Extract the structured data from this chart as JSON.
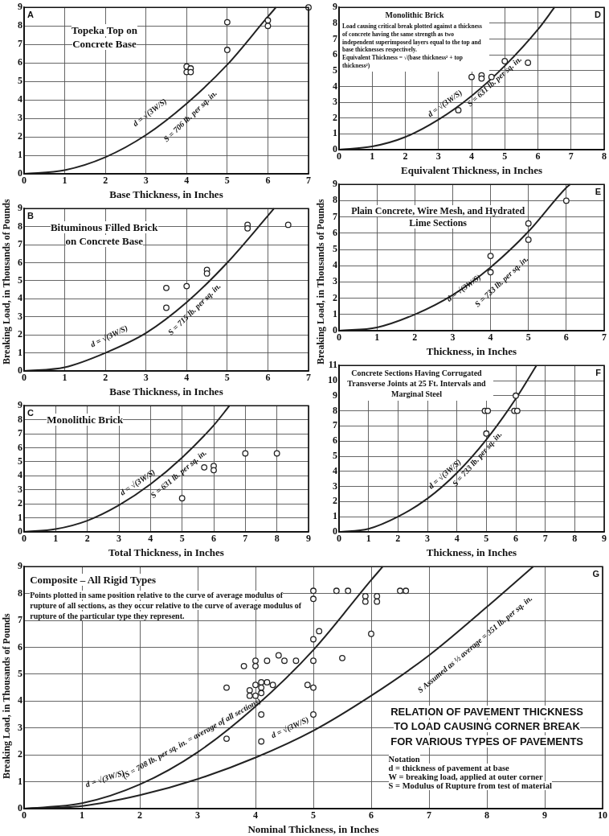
{
  "chart_data": [
    {
      "type": "scatter",
      "title": "Topeka Top on Concrete Base",
      "xlabel": "Base Thickness, in Inches",
      "xlim": [
        0,
        7
      ],
      "ylim": [
        0,
        9
      ],
      "xticks": [
        0,
        1,
        2,
        3,
        4,
        5,
        6,
        7
      ],
      "yticks": [
        0,
        1,
        2,
        3,
        4,
        5,
        6,
        7,
        8,
        9
      ],
      "grid": true,
      "marker": "circle",
      "annotations": [
        "A",
        "d = √(3W/S)",
        "S = 706 lb. per sq. in."
      ],
      "series": [
        {
          "type": "scatter",
          "color": "#222222",
          "x": [
            4,
            4,
            4.1,
            4.1,
            5,
            5,
            6,
            6,
            7
          ],
          "values": [
            5.8,
            5.5,
            5.7,
            5.5,
            8.2,
            6.7,
            8.3,
            8,
            9
          ]
        },
        {
          "type": "line",
          "marker": "none",
          "color": "#222222",
          "x": [
            0,
            1,
            2,
            3,
            4,
            5,
            6,
            6.2
          ],
          "values": [
            0,
            0.2,
            0.9,
            2.1,
            3.8,
            5.9,
            8.5,
            9
          ]
        }
      ]
    },
    {
      "type": "scatter",
      "title": "Bituminous Filled Brick on Concrete Base",
      "xlabel": "Base Thickness, in Inches",
      "ylabel": "Breaking Load, in Thousands of Pounds",
      "xlim": [
        0,
        7
      ],
      "ylim": [
        0,
        9
      ],
      "xticks": [
        0,
        1,
        2,
        3,
        4,
        5,
        6,
        7
      ],
      "yticks": [
        0,
        1,
        2,
        3,
        4,
        5,
        6,
        7,
        8,
        9
      ],
      "grid": true,
      "marker": "circle",
      "annotations": [
        "B",
        "d = √(3W/S)",
        "S = 715 lb. per sq. in."
      ],
      "series": [
        {
          "type": "scatter",
          "color": "#222222",
          "x": [
            3.5,
            3.5,
            4,
            4.5,
            4.5,
            5.5,
            5.5,
            6.5
          ],
          "values": [
            4.6,
            3.5,
            4.7,
            5.6,
            5.4,
            8.1,
            7.9,
            8.1
          ]
        },
        {
          "type": "line",
          "marker": "none",
          "color": "#222222",
          "x": [
            0,
            1,
            2,
            3,
            4,
            5,
            6,
            6.15
          ],
          "values": [
            0,
            0.2,
            1,
            2.1,
            3.8,
            6,
            8.6,
            9
          ]
        }
      ]
    },
    {
      "type": "scatter",
      "title": "Monolithic Brick",
      "xlabel": "Total Thickness, in Inches",
      "xlim": [
        0,
        9
      ],
      "ylim": [
        0,
        9
      ],
      "xticks": [
        0,
        1,
        2,
        3,
        4,
        5,
        6,
        7,
        8,
        9
      ],
      "yticks": [
        0,
        1,
        2,
        3,
        4,
        5,
        6,
        7,
        8,
        9
      ],
      "grid": true,
      "marker": "circle",
      "annotations": [
        "C",
        "d = √(3W/S)",
        "S = 631 lb. per sq. in."
      ],
      "series": [
        {
          "type": "scatter",
          "color": "#222222",
          "x": [
            5,
            5.7,
            6,
            6,
            7,
            8
          ],
          "values": [
            2.4,
            4.6,
            4.7,
            4.4,
            5.6,
            5.6
          ]
        },
        {
          "type": "line",
          "marker": "none",
          "color": "#222222",
          "x": [
            0,
            1,
            2,
            3,
            4,
            5,
            6,
            6.5
          ],
          "values": [
            0,
            0.2,
            0.8,
            1.9,
            3.4,
            5.3,
            7.6,
            9
          ]
        }
      ]
    },
    {
      "type": "scatter",
      "title": "Monolithic Brick",
      "subtitle": "Load causing critical break plotted against a thickness of concrete having the same strength as two independent superimposed layers equal to the top and base thicknesses respectively.",
      "xlabel": "Equivalent Thickness, in Inches",
      "xlim": [
        0,
        8
      ],
      "ylim": [
        0,
        9
      ],
      "xticks": [
        0,
        1,
        2,
        3,
        4,
        5,
        6,
        7,
        8
      ],
      "yticks": [
        0,
        1,
        2,
        3,
        4,
        5,
        6,
        7,
        8,
        9
      ],
      "grid": true,
      "marker": "circle",
      "annotations": [
        "D",
        "Equivalent Thickness = √(base thickness² + top thickness²)",
        "d = √(3W/S)",
        "S = 631 lb. per sq. in."
      ],
      "series": [
        {
          "type": "scatter",
          "color": "#222222",
          "x": [
            3.6,
            4,
            4.3,
            4.3,
            4.6,
            5,
            5.7
          ],
          "values": [
            2.5,
            4.6,
            4.7,
            4.5,
            4.6,
            5.6,
            5.5
          ]
        },
        {
          "type": "line",
          "marker": "none",
          "color": "#222222",
          "x": [
            0,
            1,
            2,
            3,
            4,
            5,
            6,
            6.5
          ],
          "values": [
            0,
            0.2,
            0.8,
            1.9,
            3.4,
            5.3,
            7.6,
            9
          ]
        }
      ]
    },
    {
      "type": "scatter",
      "title": "Plain Concrete, Wire Mesh, and Hydrated Lime Sections",
      "xlabel": "Thickness, in Inches",
      "ylabel": "Breaking Load, in Thousands of Pounds",
      "xlim": [
        0,
        7
      ],
      "ylim": [
        0,
        9
      ],
      "xticks": [
        0,
        1,
        2,
        3,
        4,
        5,
        6,
        7
      ],
      "yticks": [
        0,
        1,
        2,
        3,
        4,
        5,
        6,
        7,
        8,
        9
      ],
      "grid": true,
      "marker": "circle",
      "annotations": [
        "E",
        "d = √(3W/S)",
        "S = 733 lb. per sq. in."
      ],
      "series": [
        {
          "type": "scatter",
          "color": "#222222",
          "x": [
            4,
            4,
            5,
            5,
            6
          ],
          "values": [
            4.6,
            3.6,
            6.6,
            5.6,
            8
          ]
        },
        {
          "type": "line",
          "marker": "none",
          "color": "#222222",
          "x": [
            0,
            1,
            2,
            3,
            4,
            5,
            6,
            6.1
          ],
          "values": [
            0,
            0.2,
            1,
            2.2,
            3.9,
            6.1,
            8.8,
            9
          ]
        }
      ]
    },
    {
      "type": "scatter",
      "title": "Concrete Sections Having Corrugated Transverse Joints at 25 Ft. Intervals and Marginal Steel",
      "xlabel": "Thickness, in Inches",
      "xlim": [
        0,
        9
      ],
      "ylim": [
        0,
        11
      ],
      "xticks": [
        0,
        1,
        2,
        3,
        4,
        5,
        6,
        7,
        8,
        9
      ],
      "yticks": [
        0,
        1,
        2,
        3,
        4,
        5,
        6,
        7,
        8,
        9,
        10,
        11
      ],
      "grid": true,
      "marker": "circle",
      "annotations": [
        "F",
        "d = √(3W/S)",
        "S = 733 lb. per sq. in."
      ],
      "series": [
        {
          "type": "scatter",
          "color": "#222222",
          "x": [
            4.95,
            5.05,
            5,
            6,
            5.95,
            6.05
          ],
          "values": [
            8,
            8,
            6.5,
            9,
            8,
            8
          ]
        },
        {
          "type": "line",
          "marker": "none",
          "color": "#222222",
          "x": [
            0,
            1,
            2,
            3,
            4,
            5,
            6,
            6.7
          ],
          "values": [
            0,
            0.2,
            1,
            2.2,
            3.9,
            6.1,
            8.8,
            11
          ]
        }
      ]
    },
    {
      "type": "scatter",
      "title": "Composite – All Rigid Types",
      "subtitle": "Points plotted in same position relative to the curve of average modulus of rupture of all sections, as they occur relative to the curve of average modulus of rupture of the particular type they represent.",
      "xlabel": "Nominal Thickness, in Inches",
      "ylabel": "Breaking Load, in Thousands of Pounds",
      "xlim": [
        0,
        10
      ],
      "ylim": [
        0,
        9
      ],
      "xticks": [
        0,
        1,
        2,
        3,
        4,
        5,
        6,
        7,
        8,
        9,
        10
      ],
      "yticks": [
        0,
        1,
        2,
        3,
        4,
        5,
        6,
        7,
        8,
        9
      ],
      "grid": true,
      "marker": "circle",
      "annotations": [
        "G",
        "RELATION OF PAVEMENT THICKNESS TO LOAD CAUSING CORNER BREAK FOR VARIOUS TYPES OF PAVEMENTS",
        "Notation",
        "d = thickness of pavement at base",
        "W = breaking load, applied at outer corner",
        "S = Modulus of Rupture from test of material",
        "d = √(3W/S)",
        "(S = 708 lb. per sq. in. = average of all sections)",
        "d = √(3W/S)",
        "S Assumed as ½ average = 351 lb. per sq. in."
      ],
      "series": [
        {
          "type": "scatter",
          "color": "#222222",
          "x": [
            3.5,
            3.5,
            3.8,
            4,
            4,
            4.2,
            4,
            3.9,
            3.9,
            4,
            4.1,
            4.1,
            4.1,
            4.2,
            4.3,
            4.1,
            4.1,
            4.4,
            4.5,
            4.7,
            4.9,
            5,
            5,
            5.1,
            5,
            5,
            5,
            5,
            5.4,
            5.6,
            5.5,
            5.9,
            5.9,
            6.1,
            6.1,
            6,
            6.5,
            6.6
          ],
          "values": [
            2.6,
            4.5,
            5.3,
            5.5,
            5.3,
            5.5,
            4.6,
            4.4,
            4.2,
            4.2,
            4.5,
            4.7,
            4.3,
            4.7,
            4.6,
            3.5,
            2.5,
            5.7,
            5.5,
            5.5,
            4.6,
            4.5,
            6.3,
            6.6,
            5.5,
            3.5,
            8.1,
            7.8,
            8.1,
            8.1,
            5.6,
            7.7,
            7.9,
            7.9,
            7.7,
            6.5,
            8.1,
            8.1
          ]
        },
        {
          "type": "line",
          "marker": "none",
          "color": "#222222",
          "x": [
            0,
            1,
            2,
            3,
            4,
            5,
            6,
            6.2
          ],
          "values": [
            0,
            0.2,
            0.9,
            2.1,
            3.8,
            5.9,
            8.5,
            9
          ]
        },
        {
          "type": "line",
          "marker": "none",
          "color": "#222222",
          "x": [
            0,
            1,
            2,
            3,
            4,
            5,
            6,
            7,
            8,
            8.8
          ],
          "values": [
            0,
            0.1,
            0.5,
            1.1,
            1.9,
            2.9,
            4.2,
            5.7,
            7.5,
            9
          ]
        }
      ]
    }
  ]
}
